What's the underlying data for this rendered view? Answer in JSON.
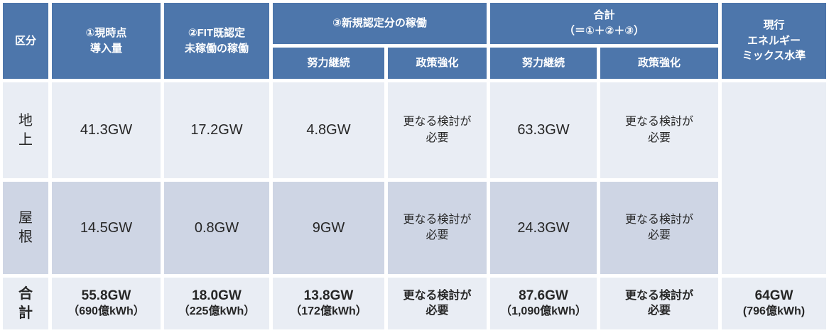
{
  "colors": {
    "header_blue": "#4d76ab",
    "row_light": "#e9edf4",
    "row_mid": "#ced5e4",
    "text_dark": "#262626",
    "border_white": "#ffffff"
  },
  "table": {
    "corner_label": "区分",
    "headers": {
      "col1": "①現時点\n導入量",
      "col2": "②FIT既認定\n未稼働の稼働",
      "group1": "③新規認定分の稼働",
      "group2": "合計\n（＝①＋②＋③）",
      "sub1": "努力継続",
      "sub2": "政策強化",
      "sub3": "努力継続",
      "sub4": "政策強化",
      "last": "現行\nエネルギー\nミックス水準"
    },
    "rows": [
      {
        "label": "地\n上",
        "cells": [
          "41.3GW",
          "17.2GW",
          "4.8GW",
          "更なる検討が\n必要",
          "63.3GW",
          "更なる検討が\n必要"
        ]
      },
      {
        "label": "屋\n根",
        "cells": [
          "14.5GW",
          "0.8GW",
          "9GW",
          "更なる検討が\n必要",
          "24.3GW",
          "更なる検討が\n必要"
        ]
      }
    ],
    "mix_cell": "",
    "total_row": {
      "label": "合\n計",
      "cells": [
        {
          "v": "55.8GW",
          "s": "（690億kWh）"
        },
        {
          "v": "18.0GW",
          "s": "（225億kWh）"
        },
        {
          "v": "13.8GW",
          "s": "（172億kWh）"
        },
        {
          "v": "更なる検討が\n必要",
          "s": ""
        },
        {
          "v": "87.6GW",
          "s": "（1,090億kWh）"
        },
        {
          "v": "更なる検討が\n必要",
          "s": ""
        },
        {
          "v": "64GW",
          "s": "(796億kWh)"
        }
      ]
    }
  }
}
